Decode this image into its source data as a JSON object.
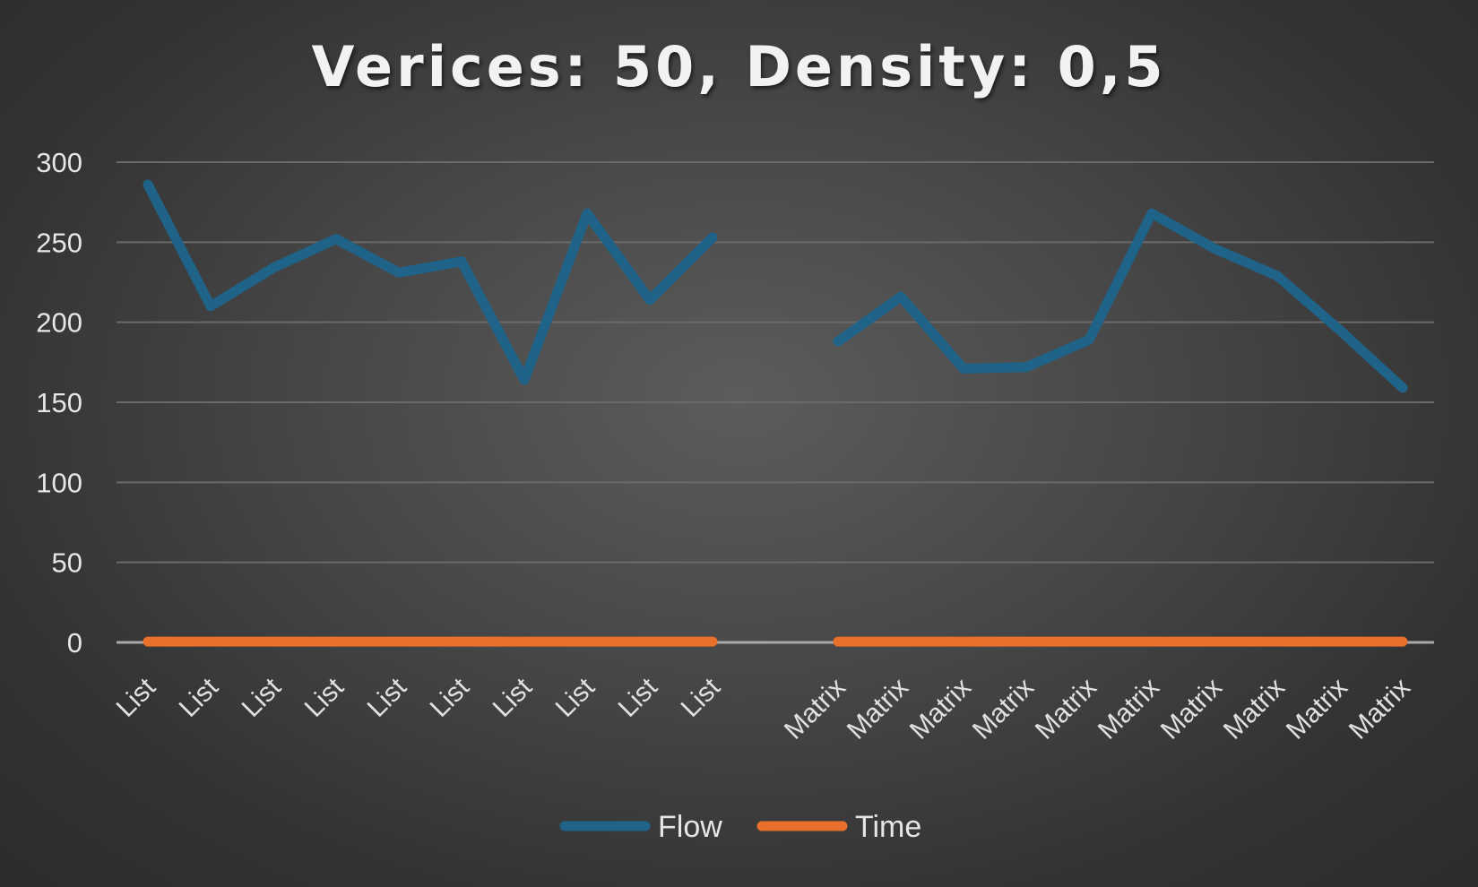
{
  "chart_data": {
    "type": "line",
    "title": "Verices: 50, Density: 0,5",
    "xlabel": "",
    "ylabel": "",
    "ylim": [
      0,
      300
    ],
    "yticks": [
      0,
      50,
      100,
      150,
      200,
      250,
      300
    ],
    "grid": true,
    "legend_position": "bottom",
    "categories": [
      "List",
      "List",
      "List",
      "List",
      "List",
      "List",
      "List",
      "List",
      "List",
      "List",
      "",
      "Matrix",
      "Matrix",
      "Matrix",
      "Matrix",
      "Matrix",
      "Matrix",
      "Matrix",
      "Matrix",
      "Matrix",
      "Matrix"
    ],
    "series": [
      {
        "name": "Flow",
        "color": "#1f6389",
        "values": [
          286,
          210,
          234,
          252,
          231,
          238,
          164,
          268,
          214,
          253,
          null,
          188,
          216,
          171,
          172,
          189,
          268,
          246,
          229,
          195,
          159
        ]
      },
      {
        "name": "Time",
        "color": "#e8702a",
        "values": [
          0.5,
          0.5,
          0.5,
          0.5,
          0.5,
          0.5,
          0.5,
          0.5,
          0.5,
          0.5,
          null,
          0.5,
          0.5,
          0.5,
          0.5,
          0.5,
          0.5,
          0.5,
          0.5,
          0.5,
          0.5
        ]
      }
    ]
  }
}
